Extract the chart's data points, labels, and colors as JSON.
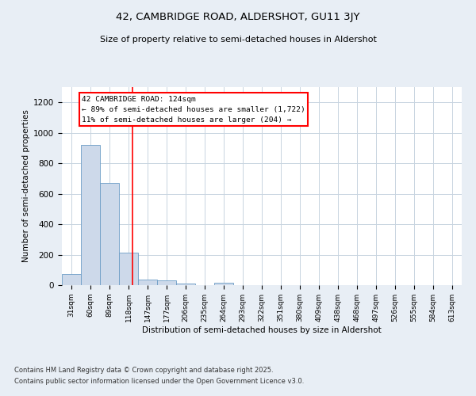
{
  "title1": "42, CAMBRIDGE ROAD, ALDERSHOT, GU11 3JY",
  "title2": "Size of property relative to semi-detached houses in Aldershot",
  "xlabel": "Distribution of semi-detached houses by size in Aldershot",
  "ylabel": "Number of semi-detached properties",
  "categories": [
    "31sqm",
    "60sqm",
    "89sqm",
    "118sqm",
    "147sqm",
    "177sqm",
    "206sqm",
    "235sqm",
    "264sqm",
    "293sqm",
    "322sqm",
    "351sqm",
    "380sqm",
    "409sqm",
    "438sqm",
    "468sqm",
    "497sqm",
    "526sqm",
    "555sqm",
    "584sqm",
    "613sqm"
  ],
  "values": [
    75,
    920,
    670,
    215,
    35,
    30,
    10,
    0,
    15,
    0,
    0,
    0,
    0,
    0,
    0,
    0,
    0,
    0,
    0,
    0,
    0
  ],
  "bar_color": "#cdd9ea",
  "bar_edge_color": "#6c9dc6",
  "vline_color": "red",
  "vline_x": 3.2,
  "annotation_title": "42 CAMBRIDGE ROAD: 124sqm",
  "annotation_line1": "← 89% of semi-detached houses are smaller (1,722)",
  "annotation_line2": "11% of semi-detached houses are larger (204) →",
  "annotation_box_color": "white",
  "annotation_box_edge": "red",
  "ylim": [
    0,
    1300
  ],
  "yticks": [
    0,
    200,
    400,
    600,
    800,
    1000,
    1200
  ],
  "footer1": "Contains HM Land Registry data © Crown copyright and database right 2025.",
  "footer2": "Contains public sector information licensed under the Open Government Licence v3.0.",
  "bg_color": "#e8eef5",
  "plot_bg_color": "#ffffff",
  "grid_color": "#c8d4e0"
}
